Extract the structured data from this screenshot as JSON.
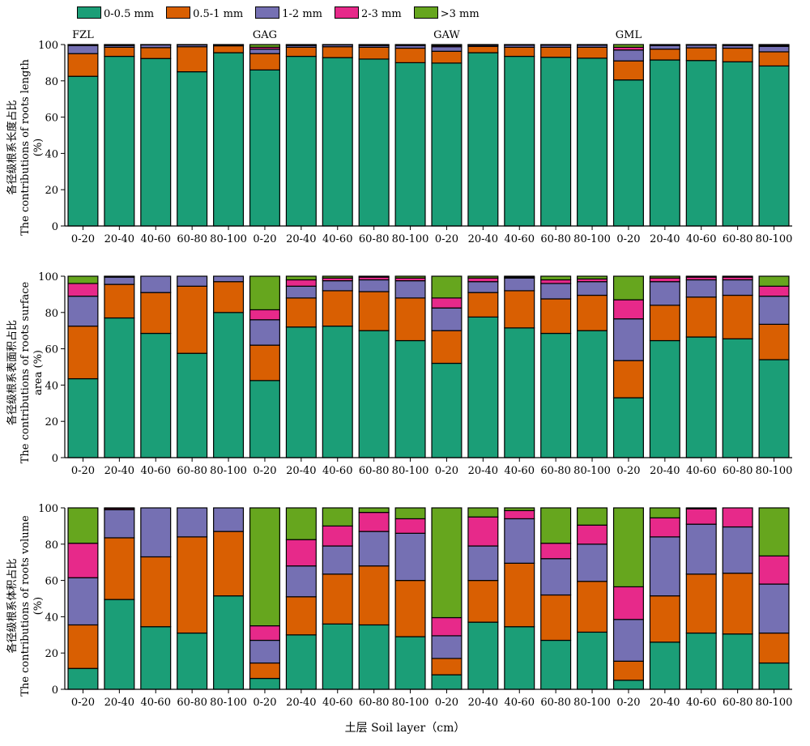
{
  "legend": {
    "items": [
      {
        "label": "0-0.5 mm",
        "color": "#1b9e77"
      },
      {
        "label": "0.5-1 mm",
        "color": "#d95f02"
      },
      {
        "label": "1-2 mm",
        "color": "#7570b3"
      },
      {
        "label": "2-3 mm",
        "color": "#e7298a"
      },
      {
        "label": ">3 mm",
        "color": "#66a61e"
      }
    ]
  },
  "xlabel": "土层 Soil layer（cm）",
  "chart_data": [
    {
      "type": "bar",
      "stacked": true,
      "ylabel_cn": "各径级根系长度占比",
      "ylabel_en": "The contributions of roots length (%)",
      "ylim": [
        0,
        100
      ],
      "yticks": [
        0,
        20,
        40,
        60,
        80,
        100
      ],
      "categories": [
        "0-20",
        "20-40",
        "40-60",
        "60-80",
        "80-100",
        "0-20",
        "20-40",
        "40-60",
        "60-80",
        "80-100",
        "0-20",
        "20-40",
        "40-60",
        "60-80",
        "80-100",
        "0-20",
        "20-40",
        "40-60",
        "60-80",
        "80-100"
      ],
      "group_labels": [
        {
          "text": "FZL",
          "bar": 0
        },
        {
          "text": "GAG",
          "bar": 5
        },
        {
          "text": "GAW",
          "bar": 10
        },
        {
          "text": "GML",
          "bar": 15
        }
      ],
      "series": [
        {
          "name": "0-0.5 mm",
          "values": [
            82.5,
            93.5,
            92.3,
            85.0,
            95.5,
            86.0,
            93.5,
            92.8,
            92.0,
            90.0,
            89.8,
            95.5,
            93.5,
            93.0,
            92.5,
            80.5,
            91.5,
            91.2,
            90.5,
            88.2
          ]
        },
        {
          "name": "0.5-1 mm",
          "values": [
            12.5,
            5.0,
            6.0,
            13.8,
            3.8,
            9.0,
            5.0,
            6.0,
            6.5,
            8.0,
            6.5,
            3.5,
            5.0,
            5.5,
            6.0,
            10.5,
            6.0,
            7.0,
            7.5,
            7.8
          ]
        },
        {
          "name": "1-2 mm",
          "values": [
            4.5,
            1.0,
            1.5,
            1.0,
            0.5,
            2.5,
            1.0,
            1.0,
            1.0,
            1.5,
            2.5,
            0.7,
            1.2,
            1.2,
            1.2,
            6.0,
            2.0,
            1.5,
            1.5,
            3.0
          ]
        },
        {
          "name": "2-3 mm",
          "values": [
            0.3,
            0.3,
            0.1,
            0.1,
            0.1,
            1.0,
            0.3,
            0.1,
            0.3,
            0.3,
            0.6,
            0.2,
            0.2,
            0.2,
            0.2,
            1.5,
            0.3,
            0.2,
            0.3,
            0.5
          ]
        },
        {
          "name": ">3 mm",
          "values": [
            0.2,
            0.2,
            0.1,
            0.1,
            0.1,
            1.5,
            0.2,
            0.1,
            0.2,
            0.2,
            0.6,
            0.1,
            0.1,
            0.1,
            0.1,
            1.5,
            0.2,
            0.1,
            0.2,
            0.5
          ]
        }
      ]
    },
    {
      "type": "bar",
      "stacked": true,
      "ylabel_cn": "各径级根系表面积占比",
      "ylabel_en": "The contributions of roots surface area (%)",
      "ylim": [
        0,
        100
      ],
      "yticks": [
        0,
        20,
        40,
        60,
        80,
        100
      ],
      "categories": [
        "0-20",
        "20-40",
        "40-60",
        "60-80",
        "80-100",
        "0-20",
        "20-40",
        "40-60",
        "60-80",
        "80-100",
        "0-20",
        "20-40",
        "40-60",
        "60-80",
        "80-100",
        "0-20",
        "20-40",
        "40-60",
        "60-80",
        "80-100"
      ],
      "series": [
        {
          "name": "0-0.5 mm",
          "values": [
            43.5,
            77.0,
            68.5,
            57.5,
            80.0,
            42.5,
            72.0,
            72.5,
            70.0,
            64.5,
            52.0,
            77.5,
            71.5,
            68.5,
            70.0,
            33.0,
            64.5,
            66.5,
            65.5,
            54.0
          ]
        },
        {
          "name": "0.5-1 mm",
          "values": [
            29.0,
            18.5,
            22.5,
            37.0,
            17.0,
            19.5,
            16.0,
            19.5,
            21.5,
            23.5,
            18.0,
            13.5,
            20.5,
            19.0,
            19.5,
            20.5,
            19.5,
            22.0,
            24.0,
            19.5
          ]
        },
        {
          "name": "1-2 mm",
          "values": [
            16.5,
            4.0,
            9.0,
            5.5,
            3.0,
            14.0,
            6.5,
            5.5,
            6.5,
            9.5,
            12.5,
            6.0,
            7.0,
            8.5,
            7.5,
            23.0,
            13.0,
            9.5,
            8.5,
            15.5
          ]
        },
        {
          "name": "2-3 mm",
          "values": [
            7.0,
            0.3,
            0.0,
            0.0,
            0.0,
            5.5,
            3.5,
            1.5,
            1.5,
            1.5,
            5.5,
            2.0,
            0.5,
            2.0,
            1.5,
            10.5,
            2.0,
            1.5,
            1.5,
            5.5
          ]
        },
        {
          "name": ">3 mm",
          "values": [
            4.0,
            0.2,
            0.0,
            0.0,
            0.0,
            18.5,
            2.0,
            1.0,
            0.5,
            1.0,
            12.0,
            1.0,
            0.5,
            2.0,
            1.5,
            13.0,
            1.0,
            0.5,
            0.5,
            5.5
          ]
        }
      ]
    },
    {
      "type": "bar",
      "stacked": true,
      "ylabel_cn": "各径级根系体积占比",
      "ylabel_en": "The contributions of roots volume (%)",
      "ylim": [
        0,
        100
      ],
      "yticks": [
        0,
        20,
        40,
        60,
        80,
        100
      ],
      "categories": [
        "0-20",
        "20-40",
        "40-60",
        "60-80",
        "80-100",
        "0-20",
        "20-40",
        "40-60",
        "60-80",
        "80-100",
        "0-20",
        "20-40",
        "40-60",
        "60-80",
        "80-100",
        "0-20",
        "20-40",
        "40-60",
        "60-80",
        "80-100"
      ],
      "series": [
        {
          "name": "0-0.5 mm",
          "values": [
            11.5,
            49.5,
            34.5,
            31.0,
            51.5,
            6.0,
            30.0,
            36.0,
            35.5,
            29.0,
            8.0,
            37.0,
            34.5,
            27.0,
            31.5,
            5.0,
            26.0,
            31.0,
            30.5,
            14.5
          ]
        },
        {
          "name": "0.5-1 mm",
          "values": [
            24.0,
            34.0,
            38.5,
            53.0,
            35.5,
            8.5,
            21.0,
            27.5,
            32.5,
            31.0,
            9.0,
            23.0,
            35.0,
            25.0,
            28.0,
            10.5,
            25.5,
            32.5,
            33.5,
            16.5
          ]
        },
        {
          "name": "1-2 mm",
          "values": [
            26.0,
            15.5,
            27.0,
            16.0,
            13.0,
            12.5,
            17.0,
            15.5,
            19.0,
            26.0,
            12.5,
            19.0,
            24.5,
            20.0,
            20.5,
            23.0,
            32.5,
            27.5,
            25.5,
            27.0
          ]
        },
        {
          "name": "2-3 mm",
          "values": [
            19.0,
            0.7,
            0.0,
            0.0,
            0.0,
            8.0,
            14.5,
            11.0,
            10.5,
            8.0,
            10.0,
            16.0,
            4.5,
            8.5,
            10.5,
            18.0,
            10.5,
            8.5,
            10.5,
            15.5
          ]
        },
        {
          "name": ">3 mm",
          "values": [
            19.5,
            0.3,
            0.0,
            0.0,
            0.0,
            65.0,
            17.5,
            10.0,
            2.5,
            6.0,
            60.5,
            5.0,
            1.5,
            19.5,
            9.5,
            43.5,
            5.5,
            0.5,
            0.0,
            26.5
          ]
        }
      ]
    }
  ]
}
